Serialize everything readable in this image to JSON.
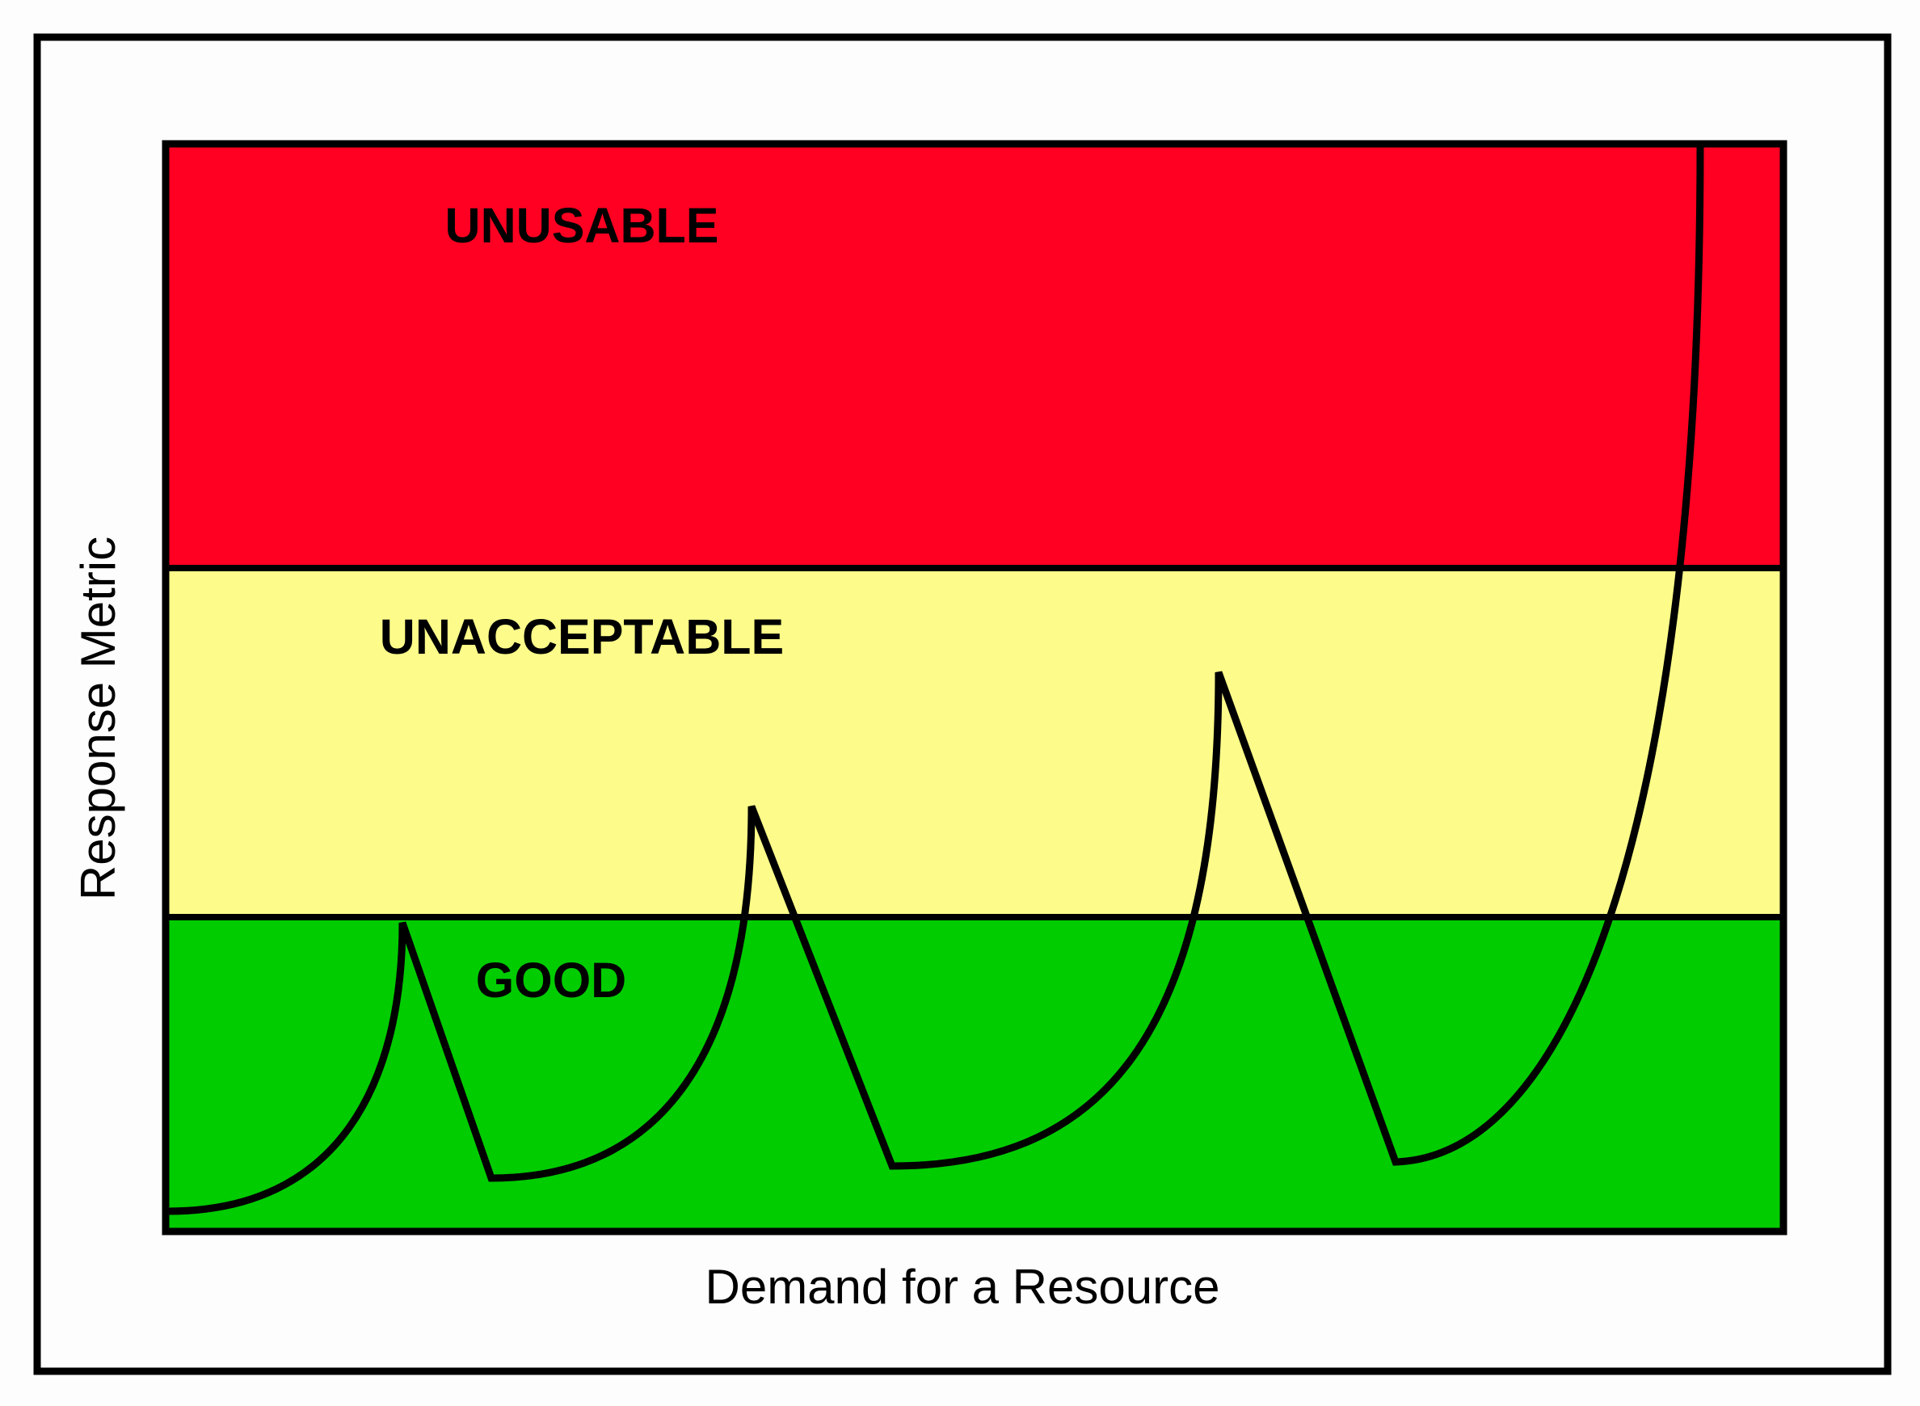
{
  "zones": {
    "top": "UNUSABLE",
    "middle": "UNACCEPTABLE",
    "bottom": "GOOD"
  },
  "x_axis_label": "Demand for a Resource",
  "y_axis_label": "Response Metric"
}
